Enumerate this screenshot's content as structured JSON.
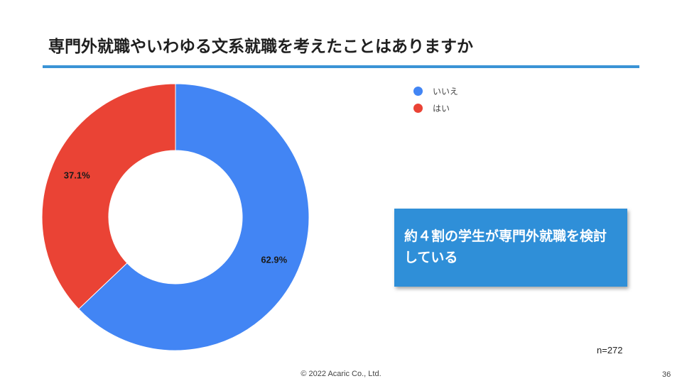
{
  "slide": {
    "title": "専門外就職やいわゆる文系就職を考えたことはありますか",
    "callout": "約４割の学生が専門外就職を検討している",
    "sample_size": "n=272",
    "footer": "© 2022 Acaric Co., Ltd.",
    "page_number": "36",
    "accent_color": "#3a93d6"
  },
  "chart_data": {
    "type": "pie",
    "donut": true,
    "title": "",
    "legend_position": "top-right",
    "slices": [
      {
        "label": "いいえ",
        "value": 62.9,
        "display": "62.9%",
        "color": "#4285f4"
      },
      {
        "label": "はい",
        "value": 37.1,
        "display": "37.1%",
        "color": "#ea4335"
      }
    ]
  }
}
